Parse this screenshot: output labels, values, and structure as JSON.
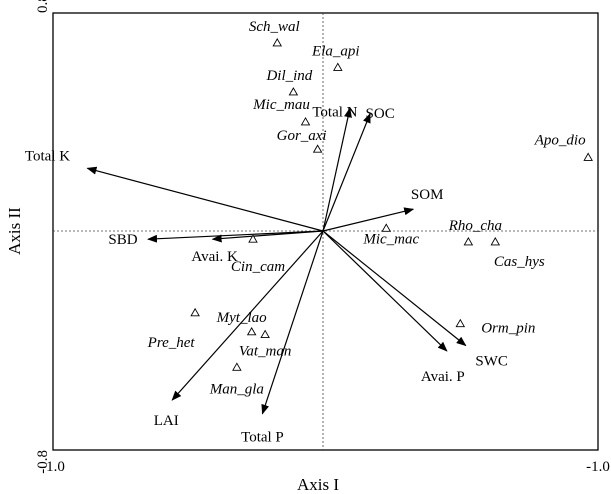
{
  "chart_data": {
    "type": "scatter",
    "subtype": "ordination-biplot",
    "title": "",
    "xlabel": "Axis I",
    "ylabel": "Axis II",
    "xlim": [
      1.0,
      -1.0
    ],
    "ylim": [
      -0.8,
      0.8
    ],
    "x_ticks": [
      "-1.0",
      "-1.0"
    ],
    "y_ticks": [
      "0.8",
      "-0.8"
    ],
    "grid": false,
    "zero_lines": "dotted",
    "species": [
      {
        "label": "Sch_wal",
        "x": 0.34,
        "y": 0.69
      },
      {
        "label": "Ela_api",
        "x": -0.11,
        "y": 0.6
      },
      {
        "label": "Dil_ind",
        "x": 0.22,
        "y": 0.51
      },
      {
        "label": "Mic_mau",
        "x": 0.13,
        "y": 0.4
      },
      {
        "label": "Gor_axi",
        "x": 0.04,
        "y": 0.3
      },
      {
        "label": "Apo_dio",
        "x": -1.97,
        "y": 0.27
      },
      {
        "label": "Rho_cha",
        "x": -1.08,
        "y": -0.04
      },
      {
        "label": "Cas_hys",
        "x": -1.28,
        "y": -0.04
      },
      {
        "label": "Mic_mac",
        "x": -0.47,
        "y": 0.01
      },
      {
        "label": "Cin_cam",
        "x": 0.52,
        "y": -0.03
      },
      {
        "label": "Orm_pin",
        "x": -1.02,
        "y": -0.34
      },
      {
        "label": "Pre_het",
        "x": 0.95,
        "y": -0.3
      },
      {
        "label": "Myt_lao",
        "x": 0.53,
        "y": -0.37
      },
      {
        "label": "Vat_man",
        "x": 0.43,
        "y": -0.38
      },
      {
        "label": "Man_gla",
        "x": 0.64,
        "y": -0.5
      }
    ],
    "environment_vectors": [
      {
        "label": "Total N",
        "x": -0.2,
        "y": 0.45
      },
      {
        "label": "SOC",
        "x": -0.35,
        "y": 0.43
      },
      {
        "label": "SOM",
        "x": -0.67,
        "y": 0.08
      },
      {
        "label": "Total K",
        "x": 1.75,
        "y": 0.23
      },
      {
        "label": "SBD",
        "x": 1.3,
        "y": -0.03
      },
      {
        "label": "Avai. K",
        "x": 0.82,
        "y": -0.03
      },
      {
        "label": "SWC",
        "x": -1.06,
        "y": -0.42
      },
      {
        "label": "Avai. P",
        "x": -0.92,
        "y": -0.44
      },
      {
        "label": "LAI",
        "x": 1.12,
        "y": -0.62
      },
      {
        "label": "Total P",
        "x": 0.45,
        "y": -0.67
      }
    ]
  }
}
